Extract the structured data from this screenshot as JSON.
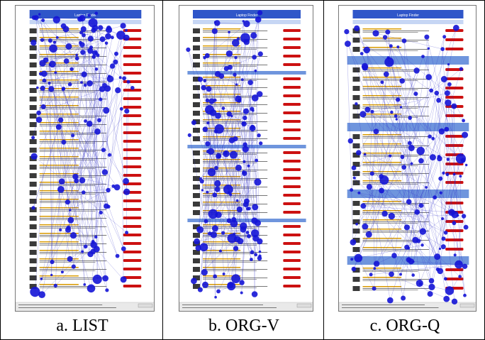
{
  "panels": [
    {
      "id": "list",
      "caption": "a. LIST",
      "title": "Laptop Finder"
    },
    {
      "id": "orgv",
      "caption": "b. ORG-V",
      "title": "Laptop Finder"
    },
    {
      "id": "orgq",
      "caption": "c. ORG-Q",
      "title": "Laptop Finder"
    }
  ],
  "colors": {
    "banner": "#2f56c9",
    "section_band": "#6f95dd",
    "light_band": "#c6d6f4",
    "fixation": "#1414d6",
    "saccade": "#2a2ac8",
    "button": "#cc1111",
    "link": "#d89a00"
  }
}
